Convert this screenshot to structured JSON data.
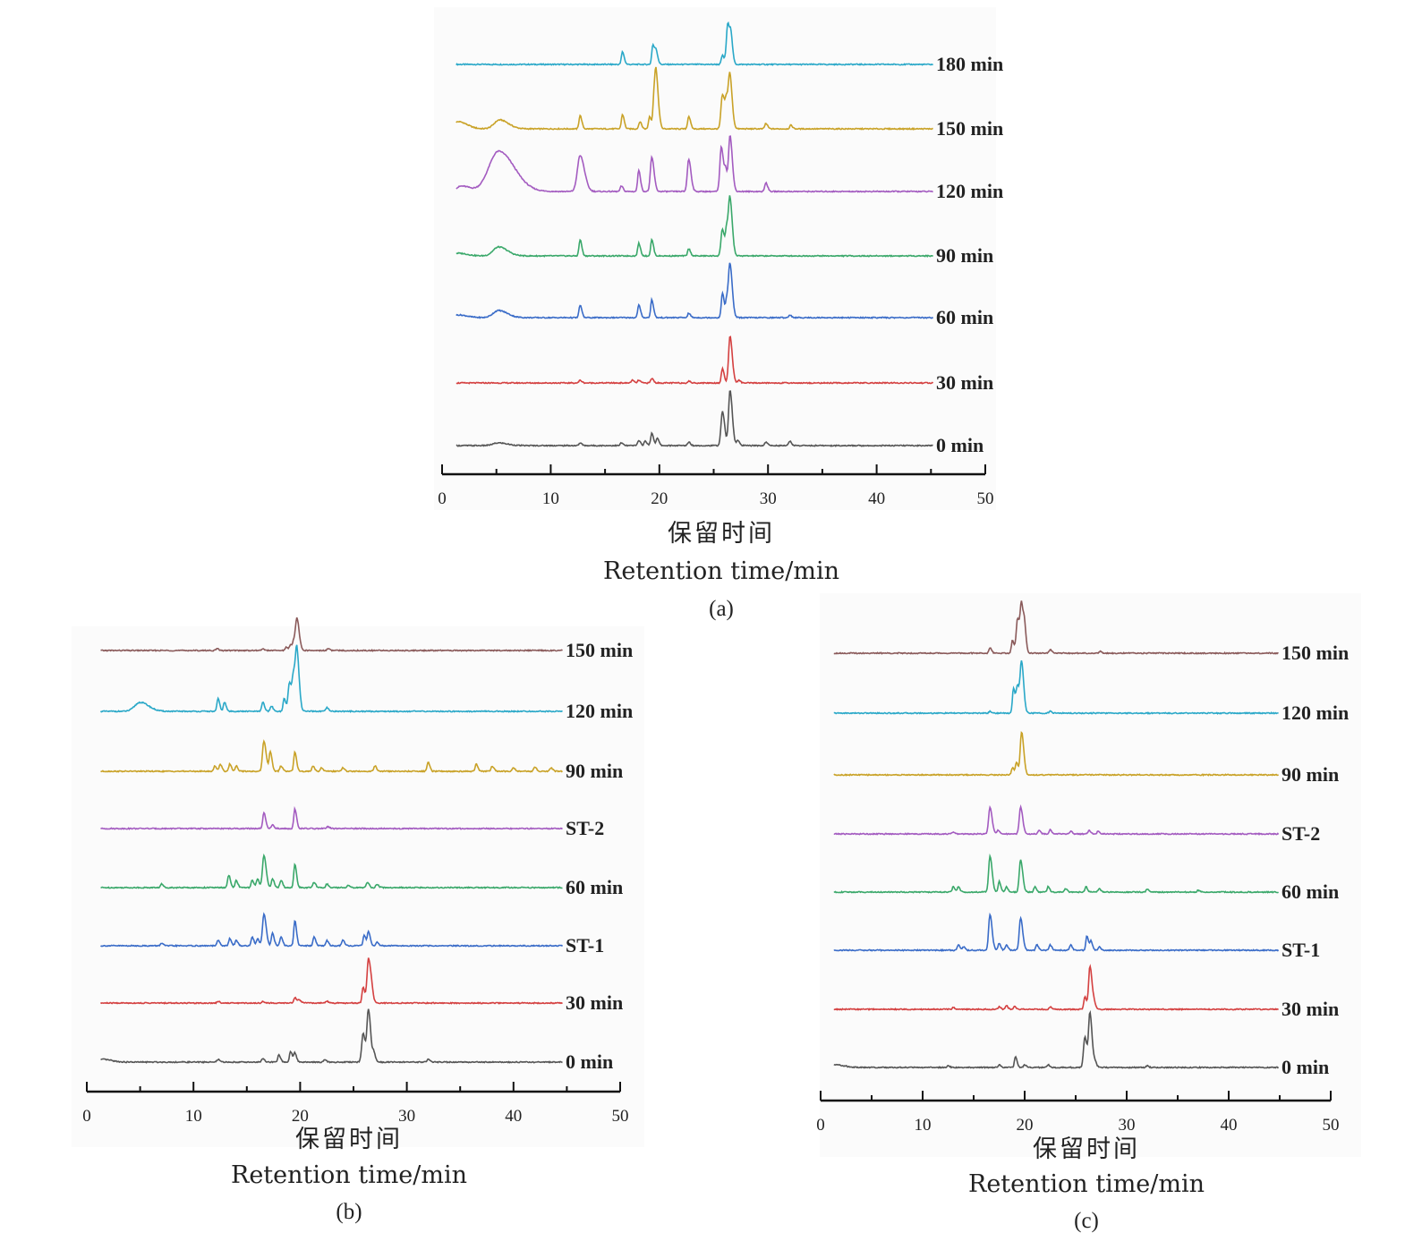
{
  "chart_data": [
    {
      "panel": "(a)",
      "type": "line",
      "xlabel_cn": "保留时间",
      "xlabel": "Retention time/min",
      "xlim": [
        0,
        50
      ],
      "xticks": [
        0,
        10,
        20,
        30,
        40,
        50
      ],
      "series": [
        {
          "name": "180 min",
          "color": "#2aa8c8",
          "peaks": [
            [
              16.6,
              14
            ],
            [
              19.4,
              22
            ],
            [
              19.7,
              14
            ],
            [
              25.8,
              10
            ],
            [
              26.3,
              46
            ],
            [
              26.6,
              22
            ]
          ]
        },
        {
          "name": "150 min",
          "color": "#c9a227",
          "peaks": [
            [
              1.5,
              8
            ],
            [
              5.3,
              10
            ],
            [
              12.7,
              15
            ],
            [
              16.6,
              16
            ],
            [
              18.2,
              8
            ],
            [
              19.1,
              14
            ],
            [
              19.5,
              28
            ],
            [
              19.7,
              55
            ],
            [
              22.7,
              14
            ],
            [
              25.8,
              38
            ],
            [
              26.2,
              30
            ],
            [
              26.5,
              52
            ],
            [
              29.8,
              6
            ],
            [
              32.1,
              4
            ]
          ]
        },
        {
          "name": "120 min",
          "color": "#a35bc0",
          "peaks": [
            [
              1.8,
              6
            ],
            [
              5.2,
              45
            ],
            [
              12.7,
              40
            ],
            [
              16.5,
              6
            ],
            [
              18.1,
              24
            ],
            [
              19.3,
              38
            ],
            [
              22.7,
              36
            ],
            [
              25.7,
              50
            ],
            [
              26.1,
              20
            ],
            [
              26.5,
              62
            ],
            [
              29.8,
              10
            ]
          ]
        },
        {
          "name": "90 min",
          "color": "#3aa86a",
          "peaks": [
            [
              1.5,
              3
            ],
            [
              5.2,
              10
            ],
            [
              12.7,
              18
            ],
            [
              18.1,
              14
            ],
            [
              19.3,
              18
            ],
            [
              22.7,
              8
            ],
            [
              25.8,
              30
            ],
            [
              26.2,
              28
            ],
            [
              26.5,
              62
            ]
          ]
        },
        {
          "name": "60 min",
          "color": "#3a6cc8",
          "peaks": [
            [
              1.5,
              3
            ],
            [
              5.2,
              8
            ],
            [
              12.7,
              14
            ],
            [
              18.1,
              14
            ],
            [
              19.3,
              20
            ],
            [
              22.7,
              5
            ],
            [
              25.8,
              28
            ],
            [
              26.2,
              20
            ],
            [
              26.5,
              58
            ],
            [
              32,
              3
            ]
          ]
        },
        {
          "name": "30 min",
          "color": "#d44040",
          "peaks": [
            [
              12.7,
              3
            ],
            [
              17.5,
              3
            ],
            [
              18.1,
              3
            ],
            [
              19.3,
              5
            ],
            [
              22.7,
              2
            ],
            [
              25.8,
              16
            ],
            [
              26.5,
              52
            ],
            [
              27.3,
              3
            ]
          ]
        },
        {
          "name": "0 min",
          "color": "#555555",
          "peaks": [
            [
              5.2,
              3
            ],
            [
              12.7,
              3
            ],
            [
              16.5,
              3
            ],
            [
              18.1,
              6
            ],
            [
              18.7,
              5
            ],
            [
              19.3,
              14
            ],
            [
              19.8,
              8
            ],
            [
              22.7,
              4
            ],
            [
              25.8,
              38
            ],
            [
              26.5,
              62
            ],
            [
              27.2,
              6
            ],
            [
              29.8,
              4
            ],
            [
              32,
              5
            ]
          ]
        }
      ]
    },
    {
      "panel": "(b)",
      "type": "line",
      "xlabel_cn": "保留时间",
      "xlabel": "Retention time/min",
      "xlim": [
        0,
        50
      ],
      "xticks": [
        0,
        10,
        20,
        30,
        40,
        50
      ],
      "series": [
        {
          "name": "150 min",
          "color": "#8a5a5a",
          "peaks": [
            [
              12.2,
              2
            ],
            [
              16.5,
              2
            ],
            [
              18.7,
              4
            ],
            [
              19.1,
              6
            ],
            [
              19.4,
              10
            ],
            [
              19.7,
              35
            ],
            [
              22.6,
              2
            ]
          ]
        },
        {
          "name": "120 min",
          "color": "#2aa8c8",
          "peaks": [
            [
              5,
              10
            ],
            [
              12.3,
              14
            ],
            [
              12.9,
              10
            ],
            [
              16.5,
              10
            ],
            [
              17.3,
              6
            ],
            [
              18.5,
              14
            ],
            [
              19,
              32
            ],
            [
              19.4,
              38
            ],
            [
              19.7,
              60
            ],
            [
              22.5,
              4
            ]
          ]
        },
        {
          "name": "90 min",
          "color": "#c9a227",
          "peaks": [
            [
              12,
              6
            ],
            [
              12.5,
              8
            ],
            [
              13.4,
              8
            ],
            [
              14,
              6
            ],
            [
              16.6,
              34
            ],
            [
              17.2,
              22
            ],
            [
              18.2,
              6
            ],
            [
              19.5,
              22
            ],
            [
              21.2,
              6
            ],
            [
              22,
              4
            ],
            [
              24,
              4
            ],
            [
              27,
              6
            ],
            [
              32,
              10
            ],
            [
              36.5,
              8
            ],
            [
              38,
              6
            ],
            [
              40,
              4
            ],
            [
              42,
              5
            ],
            [
              43.5,
              4
            ]
          ]
        },
        {
          "name": "ST-2",
          "color": "#a35bc0",
          "peaks": [
            [
              16.6,
              18
            ],
            [
              17.4,
              4
            ],
            [
              19.5,
              22
            ],
            [
              22.6,
              2
            ]
          ]
        },
        {
          "name": "60 min",
          "color": "#3aa86a",
          "peaks": [
            [
              7,
              4
            ],
            [
              13.3,
              14
            ],
            [
              14,
              8
            ],
            [
              15.5,
              8
            ],
            [
              16,
              10
            ],
            [
              16.6,
              36
            ],
            [
              17.4,
              10
            ],
            [
              18.2,
              8
            ],
            [
              19.5,
              26
            ],
            [
              21.3,
              6
            ],
            [
              22.5,
              4
            ],
            [
              24.5,
              3
            ],
            [
              26.3,
              6
            ],
            [
              27.2,
              4
            ]
          ]
        },
        {
          "name": "ST-1",
          "color": "#3a6cc8",
          "peaks": [
            [
              7,
              3
            ],
            [
              12.3,
              6
            ],
            [
              13.4,
              8
            ],
            [
              14,
              6
            ],
            [
              15.5,
              10
            ],
            [
              16,
              8
            ],
            [
              16.6,
              36
            ],
            [
              17.4,
              14
            ],
            [
              18.2,
              10
            ],
            [
              19.5,
              28
            ],
            [
              21.3,
              10
            ],
            [
              22.5,
              6
            ],
            [
              24,
              6
            ],
            [
              26,
              12
            ],
            [
              26.4,
              16
            ],
            [
              27.2,
              4
            ]
          ]
        },
        {
          "name": "30 min",
          "color": "#d44040",
          "peaks": [
            [
              12.3,
              2
            ],
            [
              16.5,
              2
            ],
            [
              19.5,
              6
            ],
            [
              19.9,
              4
            ],
            [
              22.5,
              2
            ],
            [
              25.9,
              18
            ],
            [
              26.4,
              50
            ],
            [
              26.7,
              10
            ]
          ]
        },
        {
          "name": "0 min",
          "color": "#555555",
          "peaks": [
            [
              1.5,
              3
            ],
            [
              12.3,
              3
            ],
            [
              16.5,
              4
            ],
            [
              18,
              8
            ],
            [
              19.1,
              12
            ],
            [
              19.5,
              10
            ],
            [
              22.3,
              3
            ],
            [
              25.9,
              32
            ],
            [
              26.4,
              58
            ],
            [
              26.9,
              10
            ],
            [
              32,
              3
            ]
          ]
        }
      ]
    },
    {
      "panel": "(c)",
      "type": "line",
      "xlabel_cn": "保留时间",
      "xlabel": "Retention time/min",
      "xlim": [
        0,
        50
      ],
      "xticks": [
        0,
        10,
        20,
        30,
        40,
        50
      ],
      "series": [
        {
          "name": "150 min",
          "color": "#8a5a5a",
          "peaks": [
            [
              16.6,
              6
            ],
            [
              18.8,
              14
            ],
            [
              19.3,
              38
            ],
            [
              19.7,
              52
            ],
            [
              20,
              20
            ],
            [
              22.5,
              4
            ],
            [
              27.4,
              2
            ]
          ]
        },
        {
          "name": "120 min",
          "color": "#2aa8c8",
          "peaks": [
            [
              16.6,
              2
            ],
            [
              18.9,
              28
            ],
            [
              19.3,
              30
            ],
            [
              19.7,
              54
            ],
            [
              22.5,
              2
            ]
          ]
        },
        {
          "name": "90 min",
          "color": "#c9a227",
          "peaks": [
            [
              18.8,
              8
            ],
            [
              19.2,
              14
            ],
            [
              19.7,
              48
            ]
          ]
        },
        {
          "name": "ST-2",
          "color": "#a35bc0",
          "peaks": [
            [
              13,
              2
            ],
            [
              16.6,
              30
            ],
            [
              17.4,
              4
            ],
            [
              19.6,
              30
            ],
            [
              21.4,
              4
            ],
            [
              22.5,
              5
            ],
            [
              24.5,
              3
            ],
            [
              26.3,
              4
            ],
            [
              27.2,
              3
            ]
          ]
        },
        {
          "name": "60 min",
          "color": "#3aa86a",
          "peaks": [
            [
              13,
              6
            ],
            [
              13.5,
              6
            ],
            [
              16.6,
              40
            ],
            [
              17.5,
              12
            ],
            [
              18.2,
              6
            ],
            [
              19.6,
              36
            ],
            [
              21,
              6
            ],
            [
              22.3,
              6
            ],
            [
              24,
              4
            ],
            [
              26,
              6
            ],
            [
              27.3,
              4
            ],
            [
              32,
              3
            ],
            [
              37,
              2
            ]
          ]
        },
        {
          "name": "ST-1",
          "color": "#3a6cc8",
          "peaks": [
            [
              13.5,
              6
            ],
            [
              14,
              4
            ],
            [
              16.6,
              40
            ],
            [
              17.5,
              8
            ],
            [
              18.2,
              6
            ],
            [
              19.6,
              36
            ],
            [
              21.2,
              6
            ],
            [
              22.5,
              6
            ],
            [
              24.5,
              6
            ],
            [
              26.1,
              16
            ],
            [
              26.5,
              10
            ],
            [
              27.3,
              4
            ]
          ]
        },
        {
          "name": "30 min",
          "color": "#d44040",
          "peaks": [
            [
              13,
              2
            ],
            [
              17.5,
              3
            ],
            [
              18.2,
              4
            ],
            [
              19,
              3
            ],
            [
              22.5,
              3
            ],
            [
              25.9,
              14
            ],
            [
              26.4,
              48
            ],
            [
              26.8,
              6
            ]
          ]
        },
        {
          "name": "0 min",
          "color": "#555555",
          "peaks": [
            [
              1.5,
              3
            ],
            [
              12.5,
              2
            ],
            [
              17.5,
              3
            ],
            [
              19.1,
              12
            ],
            [
              20,
              3
            ],
            [
              22.3,
              3
            ],
            [
              25.9,
              34
            ],
            [
              26.4,
              60
            ],
            [
              26.9,
              6
            ],
            [
              32,
              2
            ]
          ]
        }
      ]
    }
  ]
}
